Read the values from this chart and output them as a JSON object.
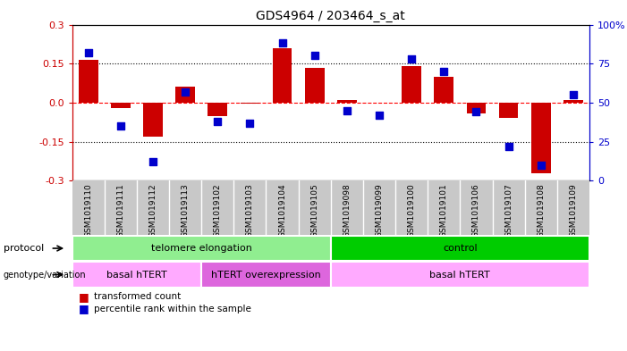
{
  "title": "GDS4964 / 203464_s_at",
  "samples": [
    "GSM1019110",
    "GSM1019111",
    "GSM1019112",
    "GSM1019113",
    "GSM1019102",
    "GSM1019103",
    "GSM1019104",
    "GSM1019105",
    "GSM1019098",
    "GSM1019099",
    "GSM1019100",
    "GSM1019101",
    "GSM1019106",
    "GSM1019107",
    "GSM1019108",
    "GSM1019109"
  ],
  "red_bars": [
    0.165,
    -0.02,
    -0.13,
    0.06,
    -0.05,
    -0.005,
    0.21,
    0.135,
    0.01,
    0.0,
    0.14,
    0.1,
    -0.04,
    -0.06,
    -0.27,
    0.01
  ],
  "blue_dots_pct": [
    82,
    35,
    12,
    57,
    38,
    37,
    88,
    80,
    45,
    42,
    78,
    70,
    44,
    22,
    10,
    55
  ],
  "protocol_groups": [
    {
      "label": "telomere elongation",
      "start": 0,
      "end": 8,
      "color": "#90ee90"
    },
    {
      "label": "control",
      "start": 8,
      "end": 16,
      "color": "#00cc00"
    }
  ],
  "genotype_groups": [
    {
      "label": "basal hTERT",
      "start": 0,
      "end": 4,
      "color": "#ffaaff"
    },
    {
      "label": "hTERT overexpression",
      "start": 4,
      "end": 8,
      "color": "#dd66dd"
    },
    {
      "label": "basal hTERT",
      "start": 8,
      "end": 16,
      "color": "#ffaaff"
    }
  ],
  "ylim": [
    -0.3,
    0.3
  ],
  "yticks_left": [
    -0.3,
    -0.15,
    0.0,
    0.15,
    0.3
  ],
  "yticks_right": [
    0,
    25,
    50,
    75,
    100
  ],
  "red_color": "#cc0000",
  "blue_color": "#0000cc",
  "bar_width": 0.6,
  "dot_size": 35,
  "grey_bg": "#c8c8c8"
}
